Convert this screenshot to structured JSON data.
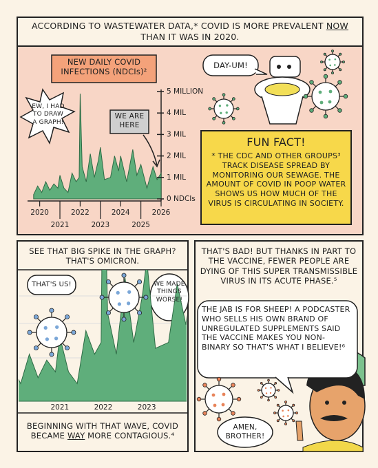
{
  "panel1": {
    "caption": [
      "ACCORDING TO WASTEWATER DATA,* COVID IS MORE PREVALENT ",
      "NOW",
      " THAN IT WAS IN 2020."
    ],
    "graph_bubble": "EW, I HAD TO DRAW A GRAPH!",
    "here_label": "WE ARE HERE",
    "toilet_bubble": "DAY-UM!",
    "fun_fact": {
      "title": "FUN FACT!",
      "body": "* THE CDC AND OTHER GROUPS³ TRACK DISEASE SPREAD BY MONITORING OUR SEWAGE. THE AMOUNT OF COVID IN POOP WATER SHOWS US HOW MUCH OF THE VIRUS IS CIRCULATING IN SOCIETY."
    }
  },
  "chart_data": {
    "type": "area",
    "title": "NEW DAILY COVID INFECTIONS (NDCIs)²",
    "color": "#5fae7b",
    "x": [
      2019.7,
      2019.9,
      2020.1,
      2020.3,
      2020.5,
      2020.7,
      2020.9,
      2021.0,
      2021.2,
      2021.4,
      2021.6,
      2021.8,
      2021.95,
      2022.0,
      2022.1,
      2022.3,
      2022.5,
      2022.7,
      2022.9,
      2023.0,
      2023.2,
      2023.5,
      2023.7,
      2023.9,
      2024.0,
      2024.3,
      2024.6,
      2024.8,
      2025.0,
      2025.3,
      2025.6,
      2025.8,
      2026.0
    ],
    "values": [
      0.2,
      0.6,
      0.3,
      0.8,
      0.4,
      0.7,
      0.5,
      1.1,
      0.5,
      0.3,
      1.2,
      0.8,
      1.0,
      4.9,
      1.5,
      0.8,
      2.1,
      1.0,
      1.8,
      2.4,
      0.9,
      1.0,
      2.0,
      1.3,
      2.0,
      0.8,
      2.3,
      1.1,
      1.6,
      0.5,
      1.5,
      0.9,
      1.2
    ],
    "xlim": [
      2019.4,
      2026
    ],
    "xticks": [
      2020,
      2021,
      2022,
      2023,
      2024,
      2025,
      2026
    ],
    "ylim": [
      0,
      5
    ],
    "yticks": [
      {
        "value": 0,
        "label": "0 NDCIs"
      },
      {
        "value": 1,
        "label": "1 MIL"
      },
      {
        "value": 2,
        "label": "2 MIL"
      },
      {
        "value": 3,
        "label": "3 MIL"
      },
      {
        "value": 4,
        "label": "4 MIL"
      },
      {
        "value": 5,
        "label": "5 MILLION"
      }
    ]
  },
  "panel2": {
    "caption": "SEE THAT BIG SPIKE IN THE GRAPH? THAT'S OMICRON.",
    "bubble_left": "THAT'S US!",
    "bubble_right": "WE MADE THINGS WORSE!",
    "footer": [
      "BEGINNING WITH THAT WAVE, COVID BECAME ",
      "WAY",
      " MORE CONTAGIOUS.⁴"
    ],
    "zoom": {
      "xlim": [
        2020.1,
        2023.9
      ],
      "xticks": [
        2021,
        2022,
        2023
      ],
      "ylim": [
        0,
        2.2
      ]
    }
  },
  "panel3": {
    "caption": "THAT'S BAD! BUT THANKS IN PART TO THE VACCINE, FEWER PEOPLE ARE DYING OF THIS SUPER TRANSMISSIBLE VIRUS IN ITS ACUTE PHASE.⁵",
    "podcaster_bubble": "THE JAB IS FOR SHEEP! A PODCASTER WHO SELLS HIS OWN BRAND OF UNREGULATED SUPPLEMENTS SAID THE VACCINE MAKES YOU NON-BINARY SO THAT'S WHAT I BELIEVE!⁶",
    "reply_bubble": "AMEN, BROTHER!"
  }
}
